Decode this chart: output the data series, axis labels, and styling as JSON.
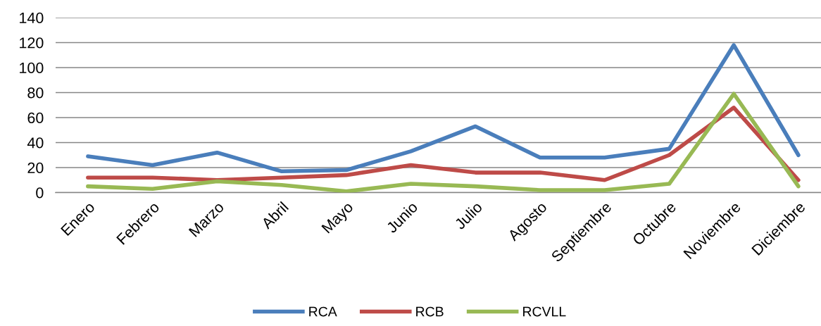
{
  "chart_data": {
    "type": "line",
    "categories": [
      "Enero",
      "Febrero",
      "Marzo",
      "Abril",
      "Mayo",
      "Junio",
      "Julio",
      "Agosto",
      "Septiembre",
      "Octubre",
      "Noviembre",
      "Diciembre"
    ],
    "series": [
      {
        "name": "RCA",
        "color": "#4a7ebb",
        "values": [
          29,
          22,
          32,
          17,
          18,
          33,
          53,
          28,
          28,
          35,
          118,
          30
        ]
      },
      {
        "name": "RCB",
        "color": "#be4b48",
        "values": [
          12,
          12,
          10,
          12,
          14,
          22,
          16,
          16,
          10,
          30,
          68,
          10
        ]
      },
      {
        "name": "RCVLL",
        "color": "#98b954",
        "values": [
          5,
          3,
          9,
          6,
          1,
          7,
          5,
          2,
          2,
          7,
          79,
          5
        ]
      }
    ],
    "ylim": [
      0,
      140
    ],
    "yticks": [
      0,
      20,
      40,
      60,
      80,
      100,
      120,
      140
    ],
    "grid": "y",
    "legend": "bottom",
    "marker": "none",
    "line_style": "solid"
  }
}
